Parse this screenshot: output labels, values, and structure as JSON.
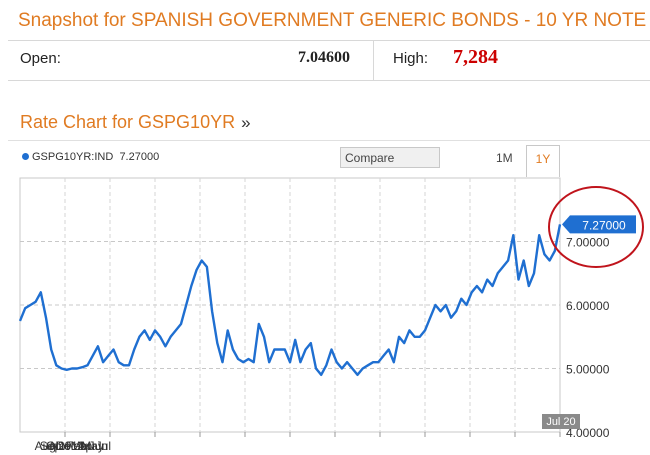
{
  "header": {
    "title": "Snapshot for SPANISH GOVERNMENT GENERIC BONDS - 10 YR NOTE",
    "open_label": "Open:",
    "open_value": "7.04600",
    "high_label": "High:",
    "high_value": "7,284"
  },
  "chart_section": {
    "heading": "Rate Chart for GSPG10YR",
    "heading_arrows": "»",
    "legend_series": "GSPG10YR:IND",
    "legend_value": "7.27000",
    "compare_label": "Compare",
    "tabs": [
      "1M",
      "1Y"
    ],
    "active_tab": "1Y",
    "current_value_label": "7.27000",
    "date_marker": "Jul 20"
  },
  "colors": {
    "accent": "#e07b22",
    "series": "#1f6fd1",
    "highlight_circle": "#c0141c",
    "high_value": "#cc0000"
  },
  "chart_data": {
    "type": "line",
    "title": "",
    "xlabel": "",
    "ylabel": "",
    "ylim": [
      4.0,
      8.0
    ],
    "yticks": [
      "4.00000",
      "5.00000",
      "6.00000",
      "7.00000"
    ],
    "ytick_values": [
      4,
      5,
      6,
      7
    ],
    "xticks": [
      "Aug",
      "Sep",
      "Oct",
      "Nov",
      "Dec",
      "2012",
      "Feb",
      "Mar",
      "Apr",
      "May",
      "Jun",
      "Jul"
    ],
    "xtick_positions": [
      0.061,
      0.177,
      0.283,
      0.409,
      0.522,
      0.637,
      0.755,
      0.855,
      0.985,
      1.112,
      1.236,
      1.352
    ],
    "grid": true,
    "series": [
      {
        "name": "GSPG10YR:IND",
        "values": [
          5.75,
          5.95,
          6.0,
          6.05,
          6.2,
          5.8,
          5.3,
          5.05,
          5.0,
          4.98,
          5.0,
          5.0,
          5.02,
          5.05,
          5.2,
          5.35,
          5.1,
          5.2,
          5.3,
          5.1,
          5.05,
          5.05,
          5.3,
          5.5,
          5.6,
          5.45,
          5.6,
          5.5,
          5.35,
          5.5,
          5.6,
          5.7,
          6.0,
          6.3,
          6.55,
          6.7,
          6.6,
          5.9,
          5.4,
          5.1,
          5.6,
          5.3,
          5.15,
          5.1,
          5.15,
          5.1,
          5.7,
          5.5,
          5.1,
          5.3,
          5.3,
          5.3,
          5.1,
          5.45,
          5.1,
          5.3,
          5.4,
          5.0,
          4.9,
          5.05,
          5.3,
          5.1,
          5.0,
          5.1,
          5.0,
          4.9,
          5.0,
          5.05,
          5.1,
          5.1,
          5.2,
          5.3,
          5.1,
          5.5,
          5.4,
          5.6,
          5.5,
          5.5,
          5.6,
          5.8,
          6.0,
          5.9,
          6.0,
          5.8,
          5.9,
          6.1,
          6.0,
          6.2,
          6.3,
          6.2,
          6.4,
          6.3,
          6.5,
          6.6,
          6.7,
          7.1,
          6.4,
          6.7,
          6.3,
          6.5,
          7.1,
          6.8,
          6.7,
          6.85,
          7.27
        ]
      }
    ]
  }
}
